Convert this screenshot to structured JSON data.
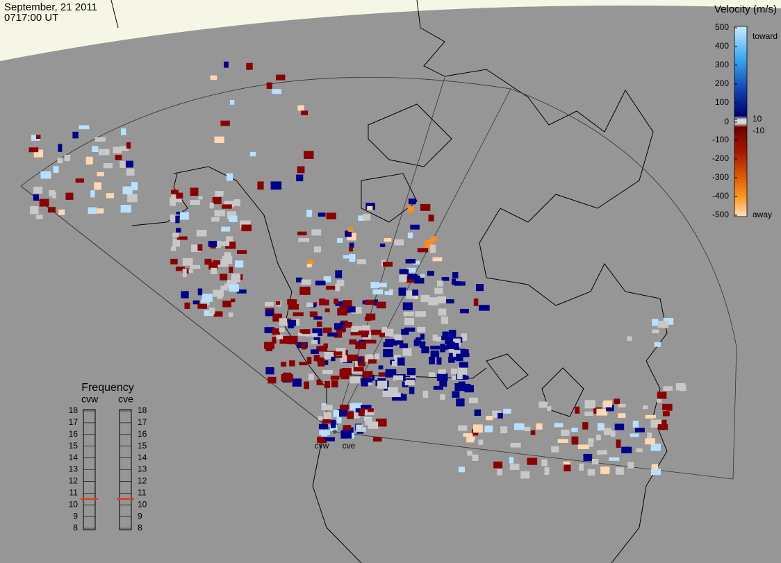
{
  "header": {
    "date": "September, 21 2011",
    "time": "0717:00 UT"
  },
  "colorbar": {
    "title": "Velocity (m/s)",
    "ticks": [
      500,
      400,
      300,
      200,
      100,
      10,
      0,
      -10,
      -100,
      -200,
      -300,
      -400,
      -500
    ],
    "toward": "toward",
    "away": "away"
  },
  "frequency": {
    "title": "Frequency",
    "ylim": [
      8,
      18
    ],
    "yticks": [
      8,
      9,
      10,
      11,
      12,
      13,
      14,
      15,
      16,
      17,
      18
    ],
    "radars": [
      {
        "name": "cvw",
        "value": 10.5
      },
      {
        "name": "cve",
        "value": 10.5
      }
    ]
  }
}
